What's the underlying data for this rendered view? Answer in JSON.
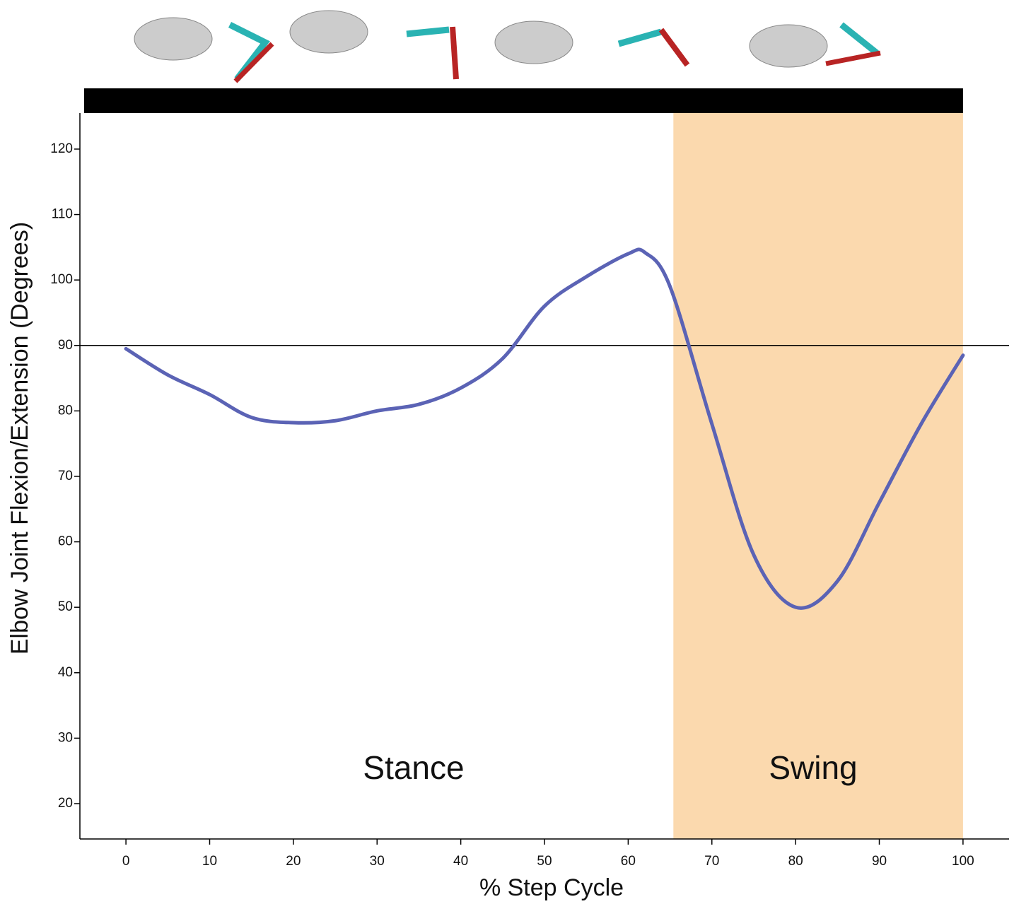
{
  "chart_data": {
    "type": "line",
    "x_label": "% Step Cycle",
    "y_label": "Elbow Joint Flexion/Extension (Degrees)",
    "x": [
      0,
      5,
      10,
      15,
      20,
      25,
      30,
      35,
      40,
      45,
      50,
      55,
      60,
      62,
      65,
      70,
      75,
      80,
      85,
      90,
      95,
      100
    ],
    "series": [
      {
        "color": "#5b63b5",
        "values": [
          89.5,
          85.5,
          82.5,
          79,
          78.2,
          78.5,
          80,
          81,
          83.5,
          88,
          96,
          100.5,
          104,
          104.2,
          99,
          78,
          58,
          50,
          54,
          66,
          78,
          88.5
        ]
      }
    ],
    "xlim": [
      -5.5,
      105.5
    ],
    "ylim": [
      14.6,
      125.5
    ],
    "xticks": [
      0,
      10,
      20,
      30,
      40,
      50,
      60,
      70,
      80,
      90,
      100
    ],
    "yticks": [
      20,
      30,
      40,
      50,
      60,
      70,
      80,
      90,
      100,
      110,
      120
    ],
    "reference_line": 90,
    "shaded_region": {
      "xlim": [
        65.4,
        100
      ],
      "color": "#fbd9ae"
    },
    "phase_bar": {
      "xlim": [
        -5,
        100
      ],
      "color": "#000000"
    },
    "annotations": [
      "Stance",
      "Swing"
    ]
  }
}
